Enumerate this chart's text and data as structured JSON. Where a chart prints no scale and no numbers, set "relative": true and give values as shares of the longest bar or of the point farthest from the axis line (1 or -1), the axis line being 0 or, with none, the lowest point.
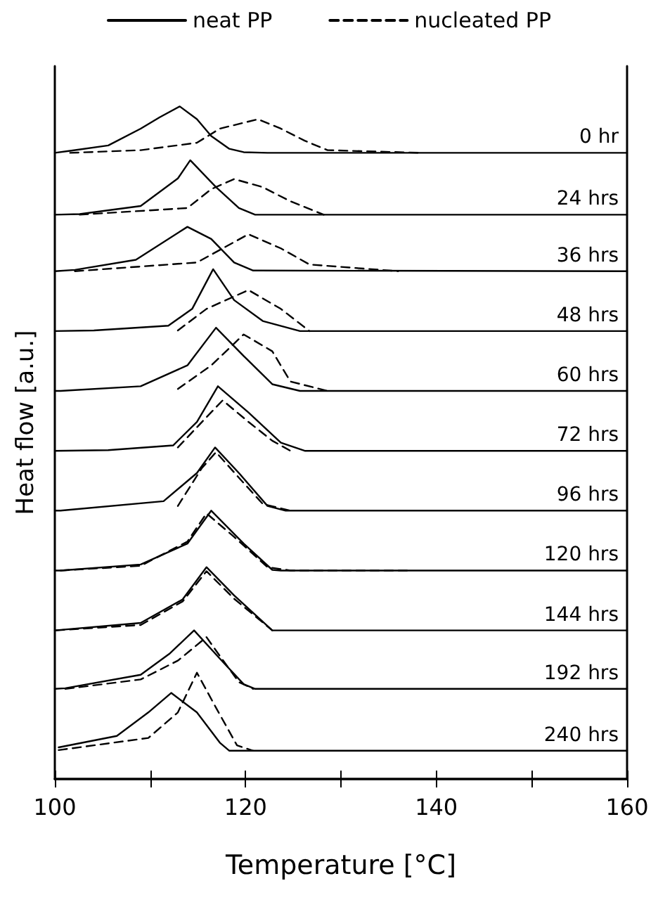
{
  "chart_data": {
    "type": "line",
    "relative": true,
    "xlabel": "Temperature [°C]",
    "ylabel": "Heat flow [a.u.]",
    "xlim": [
      100,
      160
    ],
    "xticks": [
      100,
      {
        "value": 110,
        "label": null
      },
      120,
      {
        "value": 130,
        "label": null
      },
      140,
      {
        "value": 150,
        "label": null
      },
      160
    ],
    "legend": "top",
    "marker": "none",
    "grid": false,
    "series": [
      {
        "name": "neat PP",
        "color": "#000000",
        "line_style": "solid",
        "x": [
          100,
          101.6,
          105.6,
          109.0,
          111.0,
          113.1,
          114.9,
          116.4,
          118.3,
          119.8,
          122.3,
          160
        ],
        "values": [
          0.931,
          0.934,
          0.942,
          0.967,
          0.984,
          1.0,
          0.981,
          0.956,
          0.937,
          0.932,
          0.931,
          0.931
        ]
      },
      {
        "name": "nucleated PP",
        "color": "#000000",
        "line_style": "dashed",
        "x": [
          101.6,
          109.0,
          114.9,
          117.3,
          121.3,
          123.7,
          126.2,
          128.6,
          138.5
        ],
        "values": [
          0.931,
          0.935,
          0.946,
          0.967,
          0.981,
          0.967,
          0.949,
          0.935,
          0.931
        ]
      },
      {
        "color": "#000000",
        "line_style": "solid",
        "x": [
          100,
          102.6,
          109.0,
          112.9,
          114.2,
          116.9,
          119.3,
          121.0,
          160
        ],
        "values": [
          0.839,
          0.84,
          0.852,
          0.893,
          0.92,
          0.88,
          0.849,
          0.839,
          0.839
        ]
      },
      {
        "color": "#000000",
        "line_style": "dashed",
        "x": [
          102.6,
          113.9,
          116.4,
          118.8,
          121.8,
          124.7,
          128.2
        ],
        "values": [
          0.839,
          0.849,
          0.877,
          0.892,
          0.88,
          0.859,
          0.839
        ]
      },
      {
        "color": "#000000",
        "line_style": "solid",
        "x": [
          100,
          102.1,
          108.5,
          113.9,
          116.4,
          118.8,
          120.8,
          160
        ],
        "values": [
          0.755,
          0.757,
          0.772,
          0.821,
          0.803,
          0.768,
          0.756,
          0.755
        ]
      },
      {
        "color": "#000000",
        "line_style": "dashed",
        "x": [
          102.1,
          114.9,
          120.3,
          123.7,
          126.7,
          136.0
        ],
        "values": [
          0.755,
          0.768,
          0.81,
          0.789,
          0.765,
          0.755
        ]
      },
      {
        "color": "#000000",
        "line_style": "solid",
        "x": [
          100,
          104.1,
          111.9,
          114.4,
          116.6,
          118.8,
          121.8,
          125.7,
          160
        ],
        "values": [
          0.666,
          0.667,
          0.674,
          0.699,
          0.758,
          0.712,
          0.681,
          0.666,
          0.666
        ]
      },
      {
        "color": "#000000",
        "line_style": "dashed",
        "x": [
          112.9,
          115.9,
          120.3,
          123.7,
          126.7
        ],
        "values": [
          0.667,
          0.699,
          0.727,
          0.699,
          0.666
        ]
      },
      {
        "color": "#000000",
        "line_style": "solid",
        "x": [
          100,
          100.6,
          109.0,
          113.9,
          116.9,
          119.8,
          122.8,
          125.7,
          160
        ],
        "values": [
          0.577,
          0.577,
          0.584,
          0.615,
          0.671,
          0.629,
          0.587,
          0.577,
          0.577
        ]
      },
      {
        "color": "#000000",
        "line_style": "dashed",
        "x": [
          112.9,
          116.4,
          119.8,
          122.8,
          124.7,
          128.6
        ],
        "values": [
          0.58,
          0.615,
          0.661,
          0.636,
          0.591,
          0.577
        ]
      },
      {
        "color": "#000000",
        "line_style": "solid",
        "x": [
          100,
          105.6,
          112.4,
          114.9,
          117.1,
          120.3,
          123.7,
          126.2,
          160
        ],
        "values": [
          0.488,
          0.489,
          0.496,
          0.531,
          0.584,
          0.545,
          0.5,
          0.488,
          0.488
        ]
      },
      {
        "color": "#000000",
        "line_style": "dashed",
        "x": [
          112.9,
          115.9,
          117.6,
          120.3,
          122.8,
          124.7
        ],
        "values": [
          0.493,
          0.538,
          0.563,
          0.531,
          0.503,
          0.488
        ]
      },
      {
        "color": "#000000",
        "line_style": "solid",
        "x": [
          100,
          100.6,
          111.4,
          114.9,
          116.8,
          119.3,
          122.3,
          124.2,
          160
        ],
        "values": [
          0.399,
          0.399,
          0.413,
          0.455,
          0.493,
          0.455,
          0.406,
          0.399,
          0.399
        ]
      },
      {
        "color": "#000000",
        "line_style": "dashed",
        "x": [
          112.9,
          115.4,
          116.9,
          119.3,
          121.8,
          124.7
        ],
        "values": [
          0.406,
          0.462,
          0.486,
          0.448,
          0.409,
          0.399
        ]
      },
      {
        "color": "#000000",
        "line_style": "solid",
        "x": [
          100,
          100.6,
          109.0,
          113.9,
          116.4,
          119.8,
          122.8,
          123.7,
          160
        ],
        "values": [
          0.31,
          0.31,
          0.319,
          0.35,
          0.399,
          0.35,
          0.311,
          0.31,
          0.31
        ]
      },
      {
        "color": "#000000",
        "line_style": "dashed",
        "x": [
          100.6,
          109.0,
          113.9,
          115.9,
          118.8,
          122.3,
          124.7,
          137.0
        ],
        "values": [
          0.31,
          0.317,
          0.353,
          0.395,
          0.36,
          0.315,
          0.31,
          0.31
        ]
      },
      {
        "color": "#000000",
        "line_style": "solid",
        "x": [
          100,
          100.1,
          109.0,
          113.4,
          115.9,
          118.8,
          122.8,
          160
        ],
        "values": [
          0.221,
          0.221,
          0.232,
          0.267,
          0.315,
          0.273,
          0.221,
          0.221
        ]
      },
      {
        "color": "#000000",
        "line_style": "dashed",
        "x": [
          100.1,
          109.0,
          113.4,
          115.9,
          118.8,
          122.8
        ],
        "values": [
          0.221,
          0.229,
          0.264,
          0.309,
          0.268,
          0.221
        ]
      },
      {
        "color": "#000000",
        "line_style": "solid",
        "x": [
          100,
          101.1,
          109.0,
          112.0,
          114.6,
          117.3,
          119.8,
          121.0,
          160
        ],
        "values": [
          0.134,
          0.135,
          0.155,
          0.186,
          0.221,
          0.179,
          0.141,
          0.134,
          0.134
        ]
      },
      {
        "color": "#000000",
        "line_style": "dashed",
        "x": [
          101.1,
          109.0,
          112.9,
          115.9,
          117.3,
          119.3,
          120.8
        ],
        "values": [
          0.134,
          0.148,
          0.176,
          0.211,
          0.183,
          0.144,
          0.134
        ]
      },
      {
        "color": "#000000",
        "line_style": "solid",
        "x": [
          100.4,
          106.5,
          109.8,
          112.2,
          114.9,
          117.3,
          118.3,
          160
        ],
        "values": [
          0.047,
          0.064,
          0.099,
          0.128,
          0.099,
          0.054,
          0.042,
          0.042
        ]
      },
      {
        "color": "#000000",
        "line_style": "dashed",
        "x": [
          100.4,
          109.8,
          112.9,
          114.9,
          116.9,
          119.1,
          120.8
        ],
        "values": [
          0.043,
          0.061,
          0.099,
          0.158,
          0.106,
          0.05,
          0.042
        ]
      }
    ],
    "annotations": [
      "0 hr",
      "24 hrs",
      "36 hrs",
      "48 hrs",
      "60 hrs",
      "72 hrs",
      "96 hrs",
      "120 hrs",
      "144 hrs",
      "192 hrs",
      "240 hrs"
    ]
  }
}
